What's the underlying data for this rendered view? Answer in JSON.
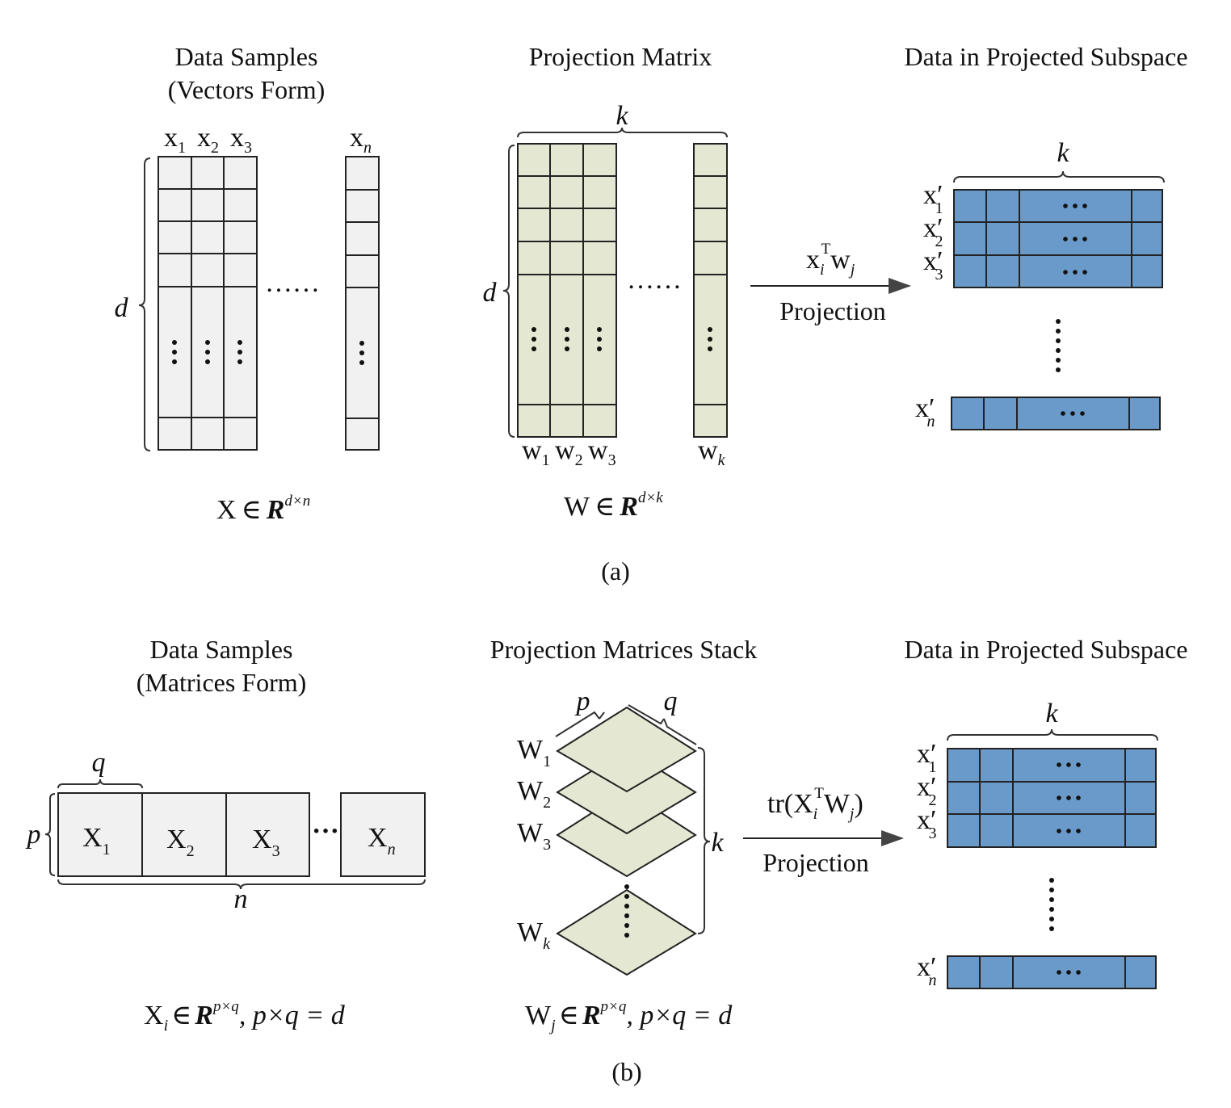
{
  "panel_a": {
    "col1_title_1": "Data Samples",
    "col1_title_2": "(Vectors Form)",
    "col2_title": "Projection Matrix",
    "col3_title": "Data in Projected Subspace",
    "dim_d": "d",
    "dim_k": "k",
    "x_letter": "x",
    "w_letter": "w",
    "x_subs": [
      "1",
      "2",
      "3",
      "n"
    ],
    "w_subs": [
      "1",
      "2",
      "3",
      "k"
    ],
    "X_letter": "X",
    "W_letter": "W",
    "elem_of": "∈",
    "R": "R",
    "dim_dxn": "d×n",
    "dim_dxk": "d×k",
    "h_dots": "……",
    "arrow_formula_x": "x",
    "arrow_formula_i": "i",
    "arrow_formula_T": "T",
    "arrow_formula_w": "w",
    "arrow_formula_j": "j",
    "arrow_label": "Projection",
    "out_rows": [
      "1",
      "2",
      "3",
      "n"
    ],
    "prime": "′",
    "caption": "(a)"
  },
  "panel_b": {
    "col1_title_1": "Data Samples",
    "col1_title_2": "(Matrices Form)",
    "col2_title": "Projection Matrices Stack",
    "col3_title": "Data in Projected Subspace",
    "dim_p": "p",
    "dim_q": "q",
    "dim_n": "n",
    "dim_k": "k",
    "X_letter": "X",
    "W_letter": "W",
    "block_subs": [
      "1",
      "2",
      "3",
      "n"
    ],
    "stack_subs": [
      "1",
      "2",
      "3",
      "k"
    ],
    "h_dots": "···",
    "arrow_formula_pre": "tr(X",
    "arrow_formula_i": "i",
    "arrow_formula_T": "T",
    "arrow_formula_W": "W",
    "arrow_formula_j": "j",
    "arrow_formula_post": ")",
    "arrow_label": "Projection",
    "formula1_sub": "i",
    "formula2_sub": "j",
    "formula_sup": "p×q",
    "formula_tail": ", p×q = d",
    "caption": "(b)"
  }
}
